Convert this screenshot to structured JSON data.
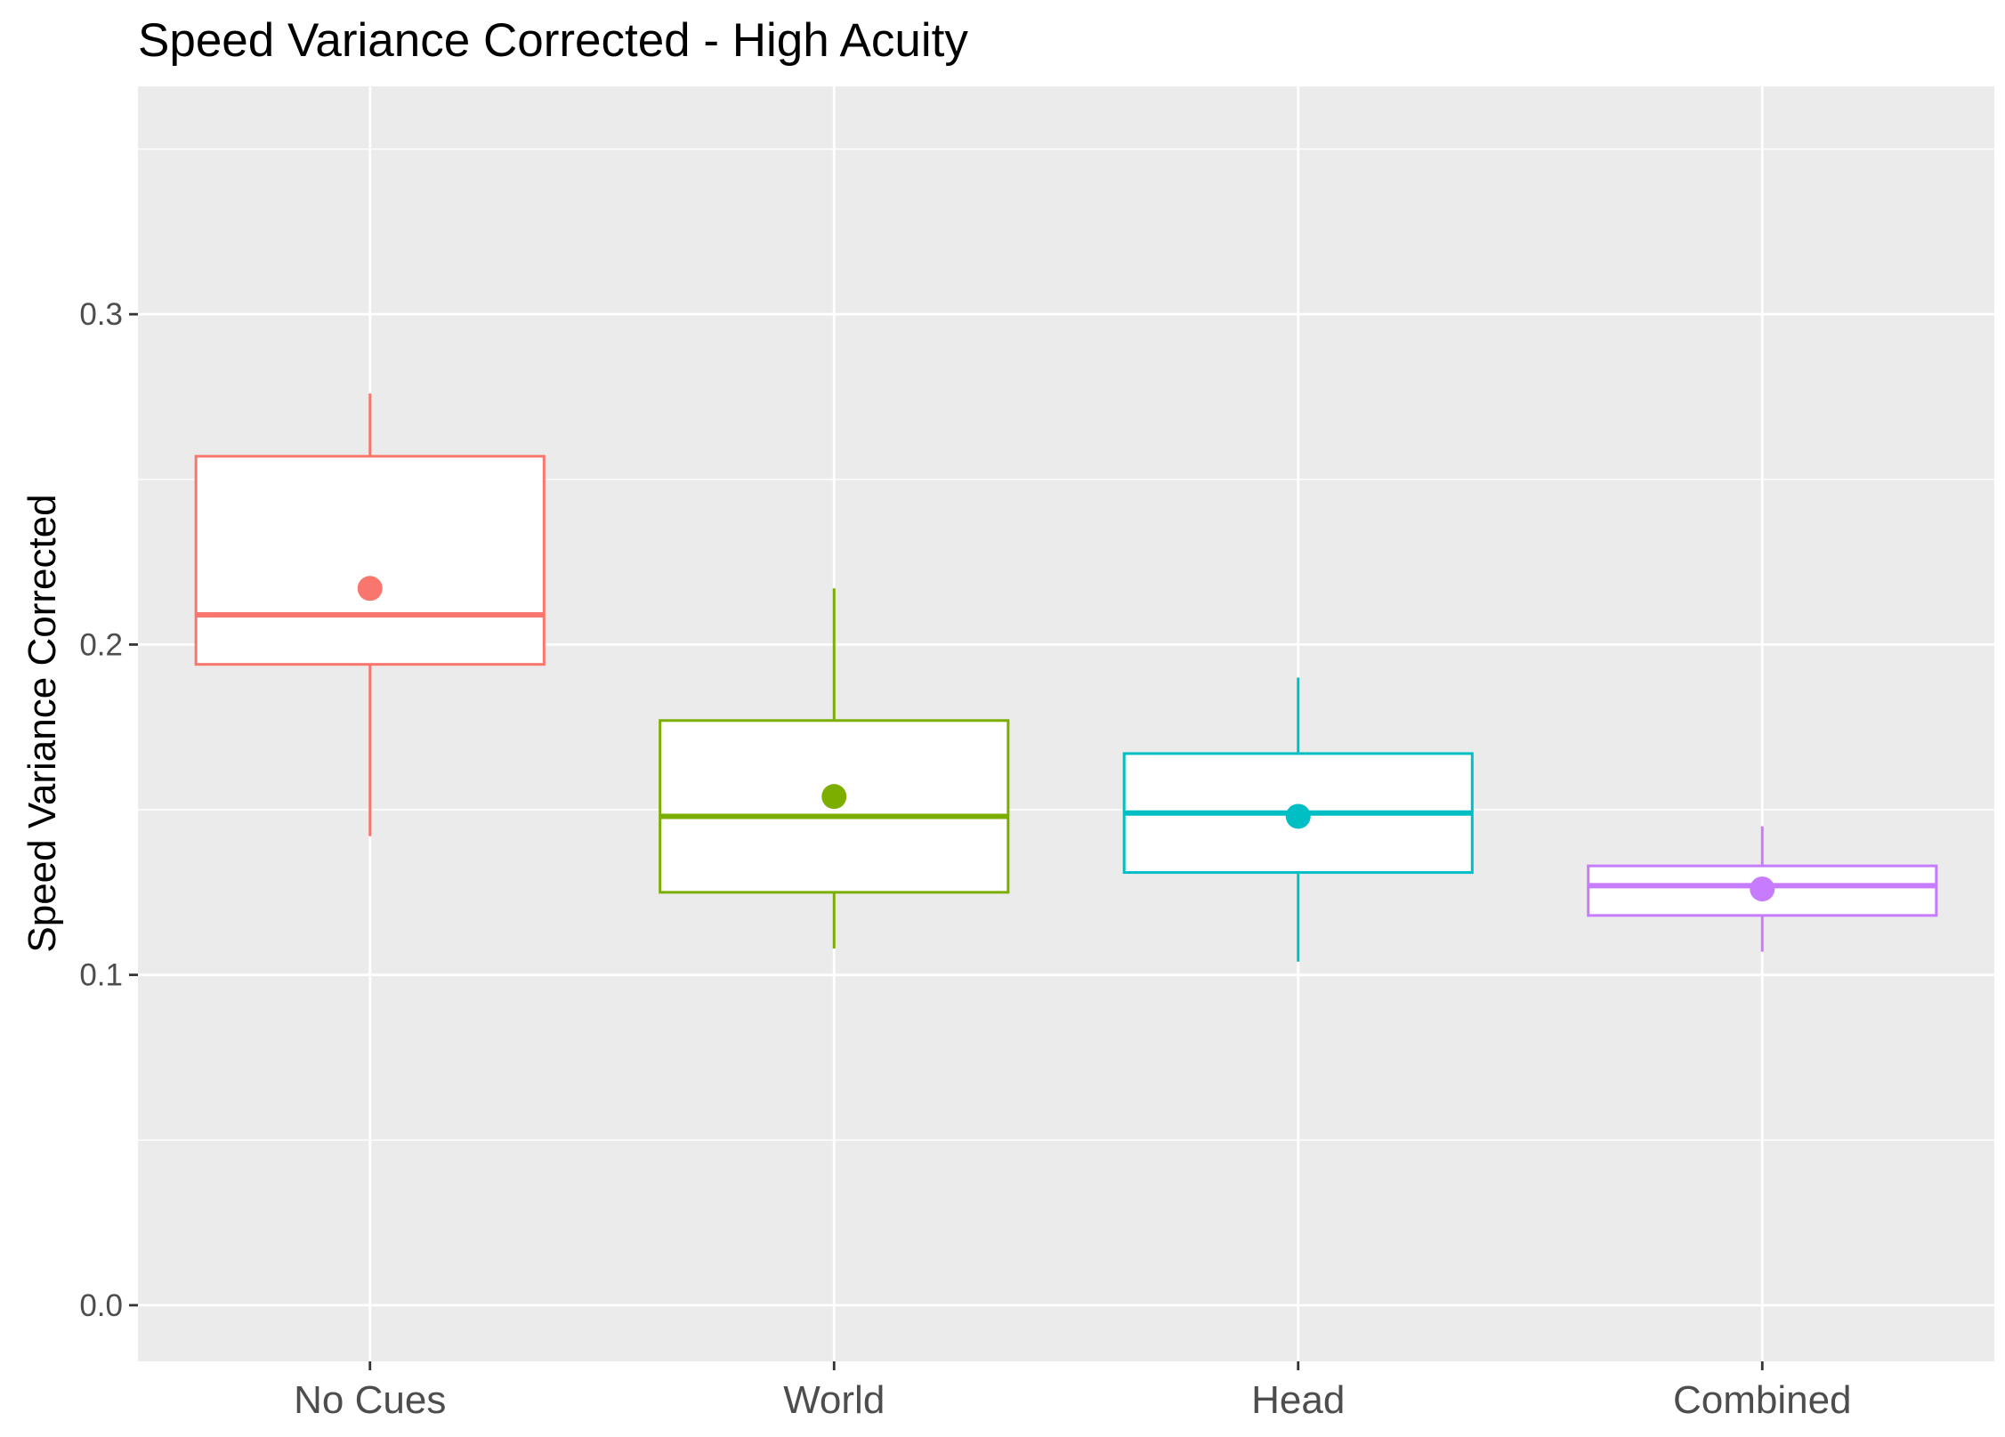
{
  "chart_data": {
    "type": "boxplot",
    "title": "Speed Variance Corrected - High Acuity",
    "xlabel": "",
    "ylabel": "Speed Variance Corrected",
    "ylim": [
      -0.017,
      0.369
    ],
    "yticks": [
      0.0,
      0.1,
      0.2,
      0.3
    ],
    "ytick_labels": [
      "0.0",
      "0.1",
      "0.2",
      "0.3"
    ],
    "y_minor_grid": [
      0.05,
      0.15,
      0.25,
      0.35
    ],
    "grid": true,
    "legend": "none",
    "categories": [
      "No Cues",
      "World",
      "Head",
      "Combined"
    ],
    "boxes": [
      {
        "category": "No Cues",
        "color": "#F8766D",
        "whisker_low": 0.142,
        "q1": 0.194,
        "median": 0.209,
        "q3": 0.257,
        "whisker_high": 0.276,
        "mean": 0.217
      },
      {
        "category": "World",
        "color": "#7CAE00",
        "whisker_low": 0.108,
        "q1": 0.125,
        "median": 0.148,
        "q3": 0.177,
        "whisker_high": 0.217,
        "mean": 0.154
      },
      {
        "category": "Head",
        "color": "#00BFC4",
        "whisker_low": 0.104,
        "q1": 0.131,
        "median": 0.149,
        "q3": 0.167,
        "whisker_high": 0.19,
        "mean": 0.148
      },
      {
        "category": "Combined",
        "color": "#C77CFF",
        "whisker_low": 0.107,
        "q1": 0.118,
        "median": 0.127,
        "q3": 0.133,
        "whisker_high": 0.145,
        "mean": 0.126
      }
    ]
  },
  "colors": {
    "panel_background": "#EBEBEB",
    "grid_major": "#FFFFFF",
    "grid_minor": "#FFFFFF"
  }
}
